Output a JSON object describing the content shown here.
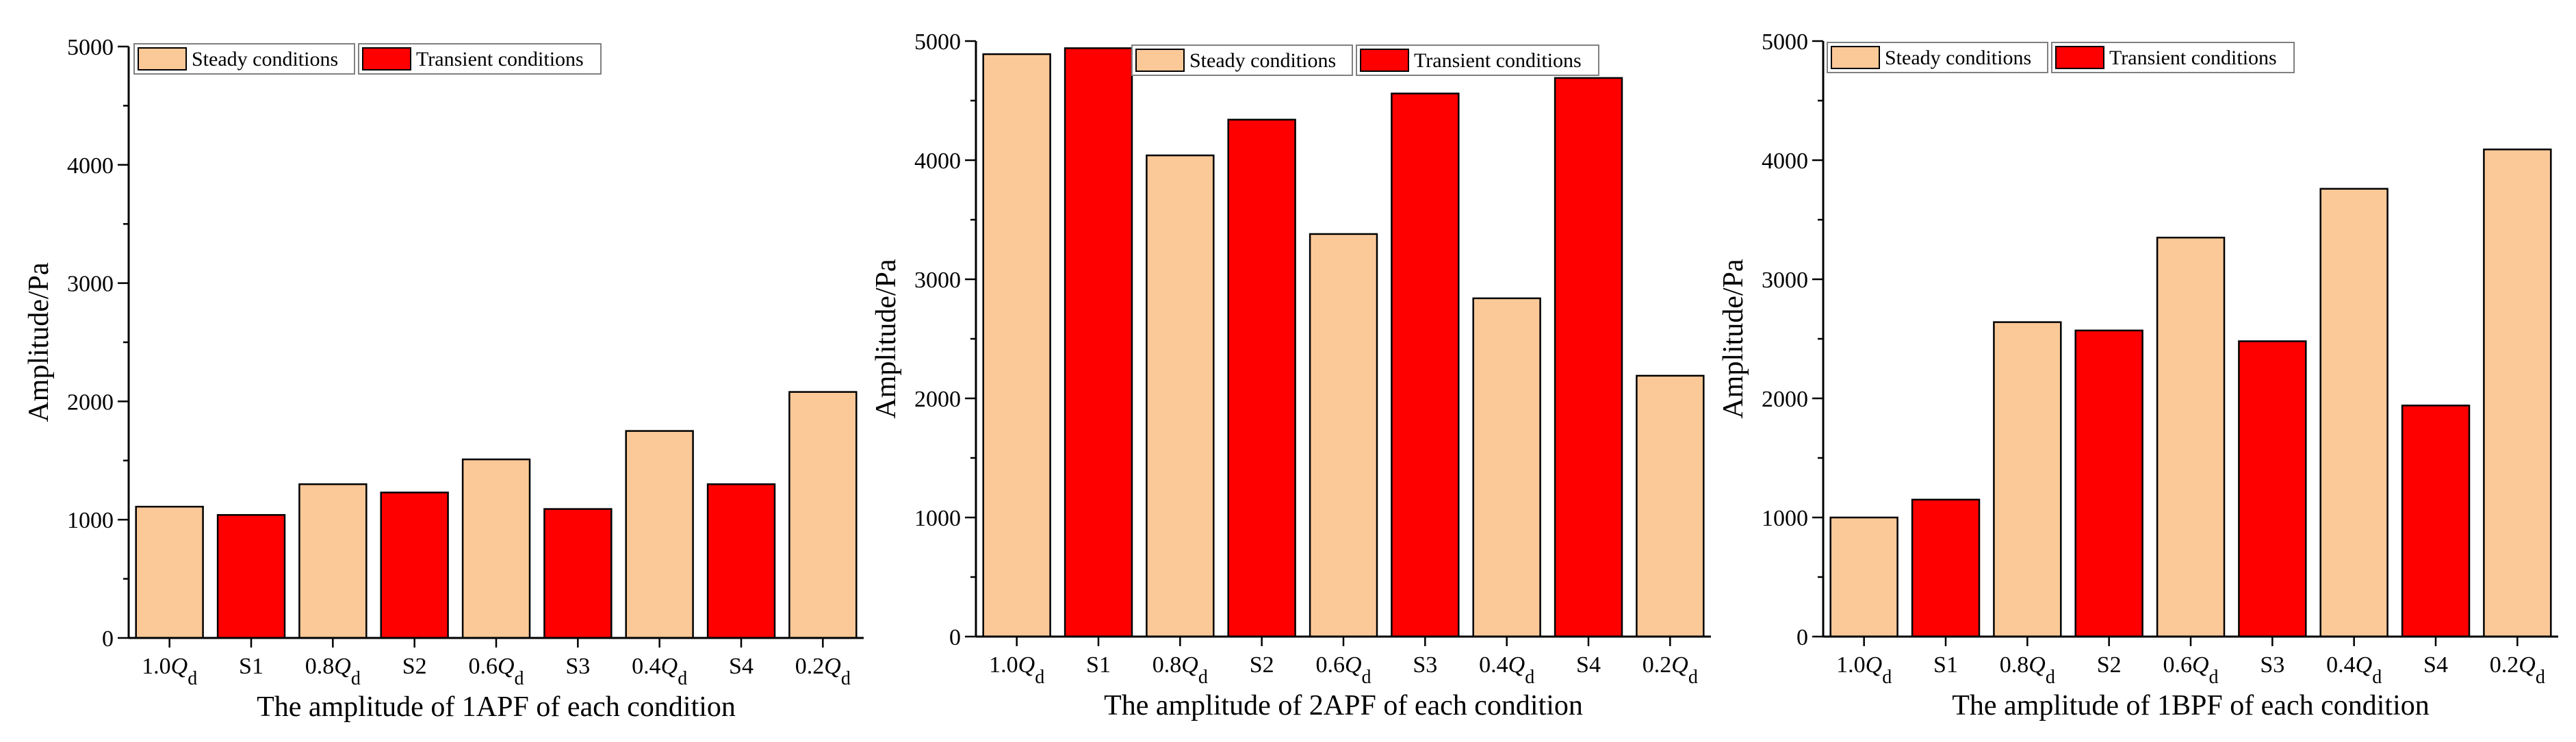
{
  "colors": {
    "steady": "#FBC898",
    "transient": "#FF0000",
    "stroke": "#000000"
  },
  "legend": {
    "steady": "Steady conditions",
    "transient": "Transient conditions"
  },
  "chart_data": [
    {
      "type": "bar",
      "title": "",
      "xlabel": "The amplitude of 1APF of each condition",
      "ylabel": "Amplitude/Pa",
      "ylim": [
        0,
        5000
      ],
      "yticks": [
        0,
        1000,
        2000,
        3000,
        4000,
        5000
      ],
      "y_minor_step": 500,
      "legend_location": "top-left",
      "categories": [
        {
          "label": "1.0Q",
          "q": true,
          "coef": "1.0"
        },
        {
          "label": "S1",
          "q": false
        },
        {
          "label": "0.8Q",
          "q": true,
          "coef": "0.8"
        },
        {
          "label": "S2",
          "q": false
        },
        {
          "label": "0.6Q",
          "q": true,
          "coef": "0.6"
        },
        {
          "label": "S3",
          "q": false
        },
        {
          "label": "0.4Q",
          "q": true,
          "coef": "0.4"
        },
        {
          "label": "S4",
          "q": false
        },
        {
          "label": "0.2Q",
          "q": true,
          "coef": "0.2"
        }
      ],
      "series_of_bar": [
        "steady",
        "transient",
        "steady",
        "transient",
        "steady",
        "transient",
        "steady",
        "transient",
        "steady"
      ],
      "values": [
        1110,
        1040,
        1300,
        1230,
        1510,
        1090,
        1750,
        1300,
        2080
      ]
    },
    {
      "type": "bar",
      "title": "",
      "xlabel": "The amplitude of 2APF of each condition",
      "ylabel": "Amplitude/Pa",
      "ylim": [
        0,
        5000
      ],
      "yticks": [
        0,
        1000,
        2000,
        3000,
        4000,
        5000
      ],
      "y_minor_step": 500,
      "legend_location": "top-center",
      "categories": [
        {
          "label": "1.0Q",
          "q": true,
          "coef": "1.0"
        },
        {
          "label": "S1",
          "q": false
        },
        {
          "label": "0.8Q",
          "q": true,
          "coef": "0.8"
        },
        {
          "label": "S2",
          "q": false
        },
        {
          "label": "0.6Q",
          "q": true,
          "coef": "0.6"
        },
        {
          "label": "S3",
          "q": false
        },
        {
          "label": "0.4Q",
          "q": true,
          "coef": "0.4"
        },
        {
          "label": "S4",
          "q": false
        },
        {
          "label": "0.2Q",
          "q": true,
          "coef": "0.2"
        }
      ],
      "series_of_bar": [
        "steady",
        "transient",
        "steady",
        "transient",
        "steady",
        "transient",
        "steady",
        "transient",
        "steady"
      ],
      "values": [
        4890,
        4940,
        4040,
        4340,
        3380,
        4560,
        2840,
        4690,
        2190
      ]
    },
    {
      "type": "bar",
      "title": "",
      "xlabel": "The amplitude of 1BPF of each condition",
      "ylabel": "Amplitude/Pa",
      "ylim": [
        0,
        5000
      ],
      "yticks": [
        0,
        1000,
        2000,
        3000,
        4000,
        5000
      ],
      "y_minor_step": 500,
      "legend_location": "top-left",
      "categories": [
        {
          "label": "1.0Q",
          "q": true,
          "coef": "1.0"
        },
        {
          "label": "S1",
          "q": false
        },
        {
          "label": "0.8Q",
          "q": true,
          "coef": "0.8"
        },
        {
          "label": "S2",
          "q": false
        },
        {
          "label": "0.6Q",
          "q": true,
          "coef": "0.6"
        },
        {
          "label": "S3",
          "q": false
        },
        {
          "label": "0.4Q",
          "q": true,
          "coef": "0.4"
        },
        {
          "label": "S4",
          "q": false
        },
        {
          "label": "0.2Q",
          "q": true,
          "coef": "0.2"
        }
      ],
      "series_of_bar": [
        "steady",
        "transient",
        "steady",
        "transient",
        "steady",
        "transient",
        "steady",
        "transient",
        "steady"
      ],
      "values": [
        1000,
        1150,
        2640,
        2570,
        3350,
        2480,
        3760,
        1940,
        4090
      ]
    }
  ]
}
